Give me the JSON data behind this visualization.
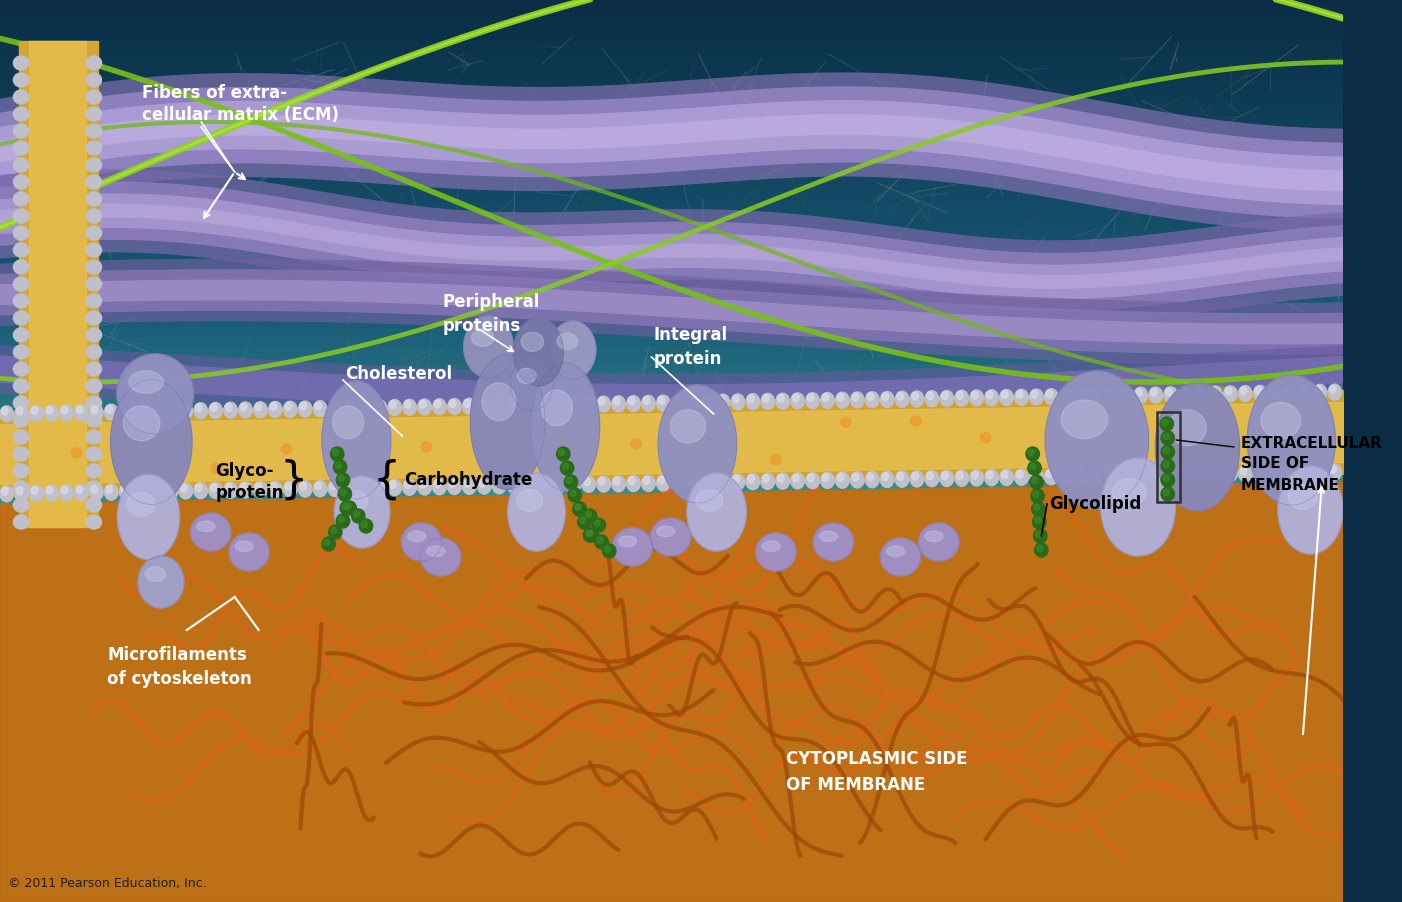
{
  "copyright": "© 2011 Pearson Education, Inc.",
  "labels": {
    "ecm": "Fibers of extra-\ncellular matrix (ECM)",
    "glycoprotein": "Glyco-\nprotein",
    "carbohydrate": "Carbohydrate",
    "glycolipid": "Glycolipid",
    "extracellular": "EXTRACELLULAR\nSIDE OF\nMEMBRANE",
    "cholesterol": "Cholesterol",
    "microfilaments": "Microfilaments\nof cytoskeleton",
    "peripheral": "Peripheral\nproteins",
    "integral": "Integral\nprotein",
    "cytoplasmic": "CYTOPLASMIC SIDE\nOF MEMBRANE"
  },
  "colors": {
    "bg_dark_blue": "#0a2d45",
    "bg_mid_blue": "#1a5a7a",
    "bg_light_blue": "#3a8fb5",
    "bg_orange": "#c47820",
    "bg_orange_dark": "#8a4808",
    "membrane_gold": "#d4a832",
    "membrane_head": "#b8b8c8",
    "membrane_head_light": "#d4d4e4",
    "protein_base": "#9090c0",
    "protein_light": "#b0b0d8",
    "protein_highlight": "#c8c8e8",
    "green_fiber": "#88cc22",
    "green_bead": "#2a6a18",
    "green_bead_light": "#3a8a28",
    "purple_ecm": "#9878c0",
    "purple_ecm_light": "#c0a8e0",
    "orange_mf": "#d06818",
    "orange_mf_dark": "#a04808"
  }
}
